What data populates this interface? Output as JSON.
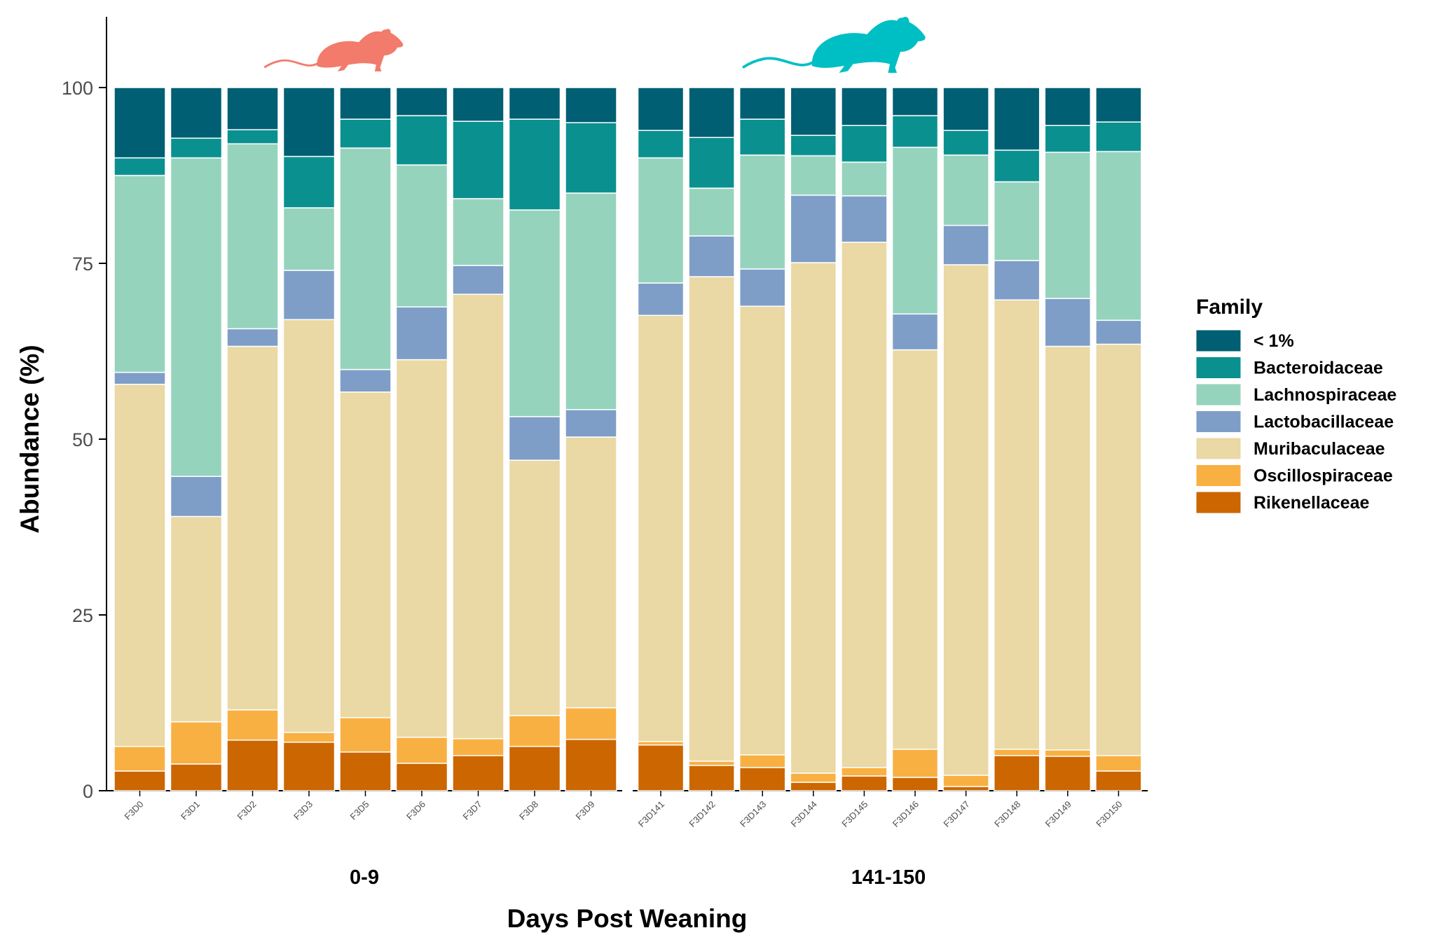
{
  "chart_data": {
    "type": "bar",
    "stacked": true,
    "ylabel": "Abundance (%)",
    "xlabel": "Days Post Weaning",
    "ylim": [
      0,
      100
    ],
    "yticks": [
      0,
      25,
      50,
      75,
      100
    ],
    "grid": false,
    "legend": {
      "title": "Family",
      "placement": "right"
    },
    "series": [
      {
        "name": "Rikenellaceae",
        "color": "#cc6600"
      },
      {
        "name": "Oscillospiraceae",
        "color": "#f9b042"
      },
      {
        "name": "Muribaculaceae",
        "color": "#ead8a5"
      },
      {
        "name": "Lactobacillaceae",
        "color": "#7e9ec8"
      },
      {
        "name": "Lachnospiraceae",
        "color": "#96d3bd"
      },
      {
        "name": "Bacteroidaceae",
        "color": "#0b9090"
      },
      {
        "name": "< 1%",
        "color": "#005f73"
      }
    ],
    "legend_order": [
      "< 1%",
      "Bacteroidaceae",
      "Lachnospiraceae",
      "Lactobacillaceae",
      "Muribaculaceae",
      "Oscillospiraceae",
      "Rikenellaceae"
    ],
    "panels": [
      {
        "label": "0-9",
        "icon": {
          "name": "mouse-icon-small",
          "color": "#f27b6c"
        },
        "categories": [
          "F3D0",
          "F3D1",
          "F3D2",
          "F3D3",
          "F3D5",
          "F3D6",
          "F3D7",
          "F3D8",
          "F3D9"
        ],
        "values": [
          [
            2.8,
            3.5,
            51.5,
            1.7,
            28.0,
            2.5,
            10.0
          ],
          [
            3.8,
            6.0,
            29.2,
            5.7,
            45.3,
            2.8,
            7.2
          ],
          [
            7.2,
            4.3,
            51.7,
            2.5,
            26.3,
            2.0,
            6.0
          ],
          [
            6.9,
            1.4,
            58.7,
            7.0,
            8.9,
            7.3,
            9.8
          ],
          [
            5.5,
            4.9,
            46.3,
            3.2,
            31.5,
            4.1,
            4.5
          ],
          [
            3.9,
            3.7,
            53.7,
            7.5,
            20.2,
            7.0,
            4.0
          ],
          [
            5.0,
            2.4,
            63.2,
            4.1,
            9.5,
            11.0,
            4.8
          ],
          [
            6.3,
            4.4,
            36.3,
            6.2,
            29.4,
            12.9,
            4.5
          ],
          [
            7.3,
            4.5,
            38.5,
            3.9,
            30.8,
            10.0,
            5.0
          ]
        ]
      },
      {
        "label": "141-150",
        "icon": {
          "name": "mouse-icon-large",
          "color": "#00bfc4"
        },
        "categories": [
          "F3D141",
          "F3D142",
          "F3D143",
          "F3D144",
          "F3D145",
          "F3D146",
          "F3D147",
          "F3D148",
          "F3D149",
          "F3D150"
        ],
        "values": [
          [
            6.5,
            0.5,
            60.6,
            4.6,
            17.8,
            3.9,
            6.1
          ],
          [
            3.6,
            0.6,
            68.9,
            5.8,
            6.8,
            7.2,
            7.1
          ],
          [
            3.3,
            1.8,
            63.8,
            5.3,
            16.2,
            5.1,
            4.5
          ],
          [
            1.2,
            1.3,
            72.6,
            9.6,
            5.6,
            2.9,
            6.8
          ],
          [
            2.1,
            1.2,
            74.7,
            6.6,
            4.8,
            5.2,
            5.4
          ],
          [
            1.9,
            4.0,
            56.8,
            5.1,
            23.7,
            4.5,
            4.0
          ],
          [
            0.6,
            1.6,
            72.6,
            5.6,
            10.0,
            3.5,
            6.1
          ],
          [
            5.0,
            0.9,
            63.9,
            5.6,
            11.2,
            4.5,
            8.9
          ],
          [
            4.9,
            0.9,
            57.4,
            6.8,
            20.8,
            3.8,
            5.4
          ],
          [
            2.8,
            2.2,
            58.5,
            3.4,
            24.0,
            4.2,
            4.9
          ]
        ]
      }
    ]
  }
}
